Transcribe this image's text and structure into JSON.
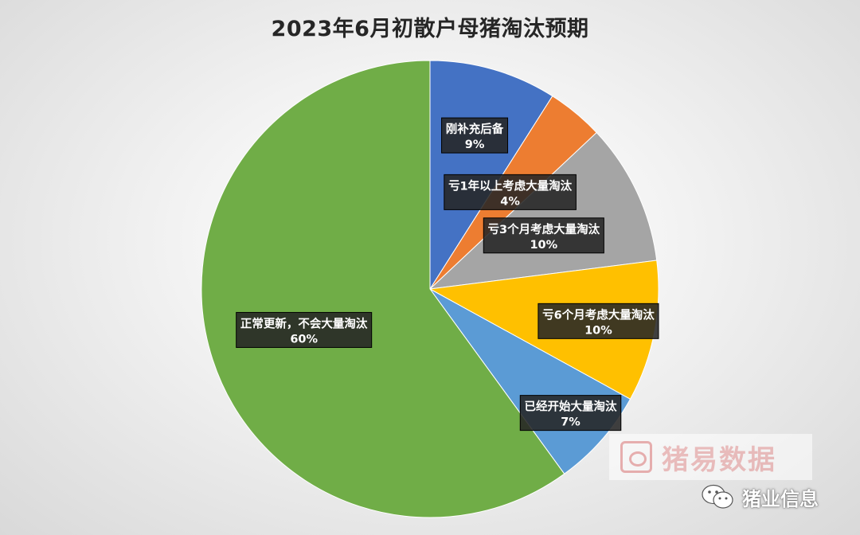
{
  "chart_data": {
    "type": "pie",
    "title": "2023年6月初散户母猪淘汰预期",
    "start_angle_deg": 0,
    "direction": "clockwise",
    "slices": [
      {
        "label": "刚补充后备",
        "value": 9,
        "display": "9%",
        "color": "#4472C4"
      },
      {
        "label": "亏1年以上考虑大量淘汰",
        "value": 4,
        "display": "4%",
        "color": "#ED7D31"
      },
      {
        "label": "亏3个月考虑大量淘汰",
        "value": 10,
        "display": "10%",
        "color": "#A5A5A5"
      },
      {
        "label": "亏6个月考虑大量淘汰",
        "value": 10,
        "display": "10%",
        "color": "#FFC000"
      },
      {
        "label": "已经开始大量淘汰",
        "value": 7,
        "display": "7%",
        "color": "#5B9BD5"
      },
      {
        "label": "正常更新，不会大量淘汰",
        "value": 60,
        "display": "60%",
        "color": "#70AD47"
      }
    ]
  },
  "watermarks": {
    "primary": "猪易数据",
    "secondary": "猪业信息"
  }
}
